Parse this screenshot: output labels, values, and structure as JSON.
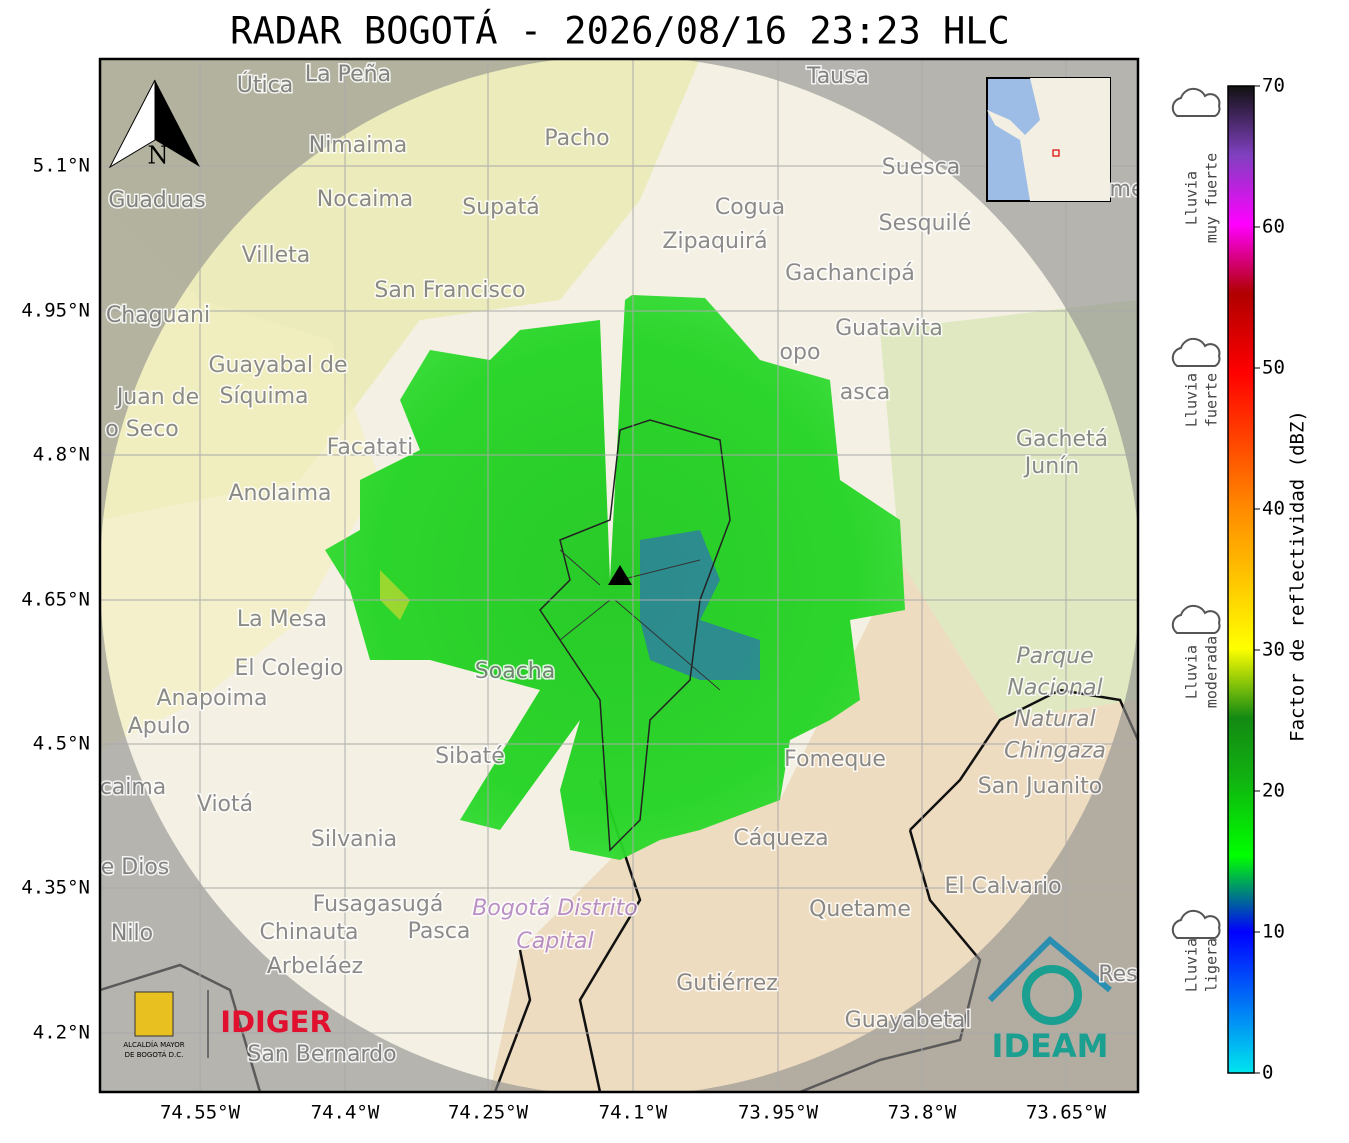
{
  "header": {
    "title": "RADAR BOGOTÁ - 2026/08/16 23:23 HLC"
  },
  "map": {
    "lat_ticks": [
      "5.1°N",
      "4.95°N",
      "4.8°N",
      "4.65°N",
      "4.5°N",
      "4.35°N",
      "4.2°N"
    ],
    "lon_ticks": [
      "74.55°W",
      "74.4°W",
      "74.25°W",
      "74.1°W",
      "73.95°W",
      "73.8°W",
      "73.65°W"
    ],
    "north": "N",
    "places": [
      "La Peña",
      "Útica",
      "Tausa",
      "Pacho",
      "Nimaima",
      "Suesca",
      "Guaduas",
      "Nocaima",
      "Supatá",
      "Cogua",
      "Sesquilé",
      "Zipaquirá",
      "Villeta",
      "Gachancipá",
      "San Francisco",
      "Chaguani",
      "Guatavita",
      "Guayabal de",
      "Síquima",
      "Juan de",
      "o Seco",
      "Gachetá",
      "Junín",
      "Facatati",
      "Anolaima",
      "La Mesa",
      "El Colegio",
      "Soacha",
      "Anapoima",
      "Apulo",
      "Sibaté",
      "Fomeque",
      "San Juanito",
      "caima",
      "Viotá",
      "Silvania",
      "Cáqueza",
      "e Dios",
      "El Calvario",
      "Fusagasugá",
      "Quetame",
      "Nilo",
      "Chinauta",
      "Pasca",
      "Arbeláez",
      "Gutiérrez",
      "Guayabetal",
      "San Bernardo",
      "Res",
      "me",
      "opo",
      "asca"
    ],
    "park": [
      "Parque",
      "Nacional",
      "Natural",
      "Chingaza"
    ],
    "district": [
      "Bogotá Distrito",
      "Capital"
    ],
    "logos": {
      "alcaldia": [
        "ALCALDÍA MAYOR",
        "DE BOGOTÁ D.C."
      ],
      "idiger": "IDIGER",
      "ideam": "IDEAM"
    }
  },
  "colorbar": {
    "label": "Factor de reflectividad (dBZ)",
    "ticks": [
      0,
      10,
      20,
      30,
      40,
      50,
      60,
      70
    ],
    "categories": [
      [
        "Lluvia",
        "muy fuerte"
      ],
      [
        "Lluvia",
        "fuerte"
      ],
      [
        "Lluvia",
        "moderada"
      ],
      [
        "Lluvia",
        "ligera"
      ]
    ]
  }
}
